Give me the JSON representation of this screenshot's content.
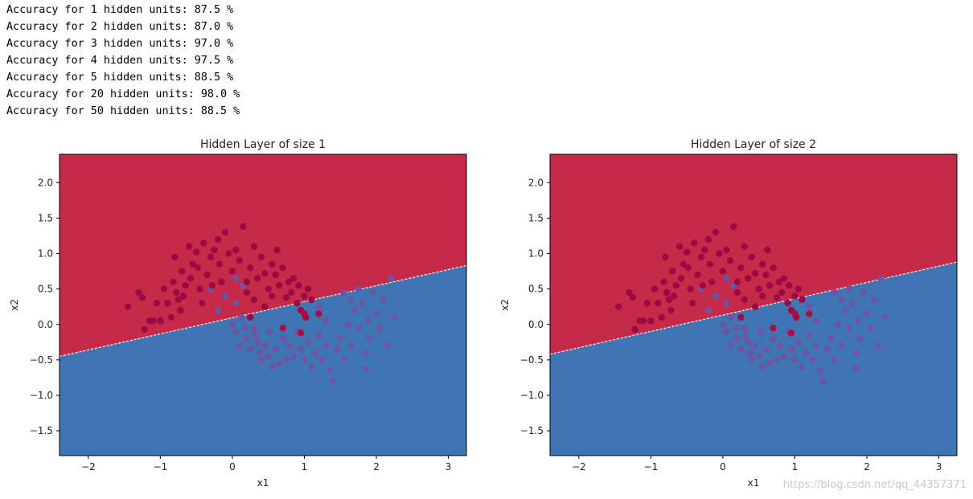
{
  "output_log": [
    "Accuracy for 1 hidden units: 87.5 %",
    "Accuracy for 2 hidden units: 87.0 %",
    "Accuracy for 3 hidden units: 97.0 %",
    "Accuracy for 4 hidden units: 97.5 %",
    "Accuracy for 5 hidden units: 88.5 %",
    "Accuracy for 20 hidden units: 98.0 %",
    "Accuracy for 50 hidden units: 88.5 %"
  ],
  "watermark": "https://blog.csdn.net/qq_44357371",
  "colors": {
    "region_class1": "#c62a49",
    "region_class0": "#3e76b3",
    "point_class1": "#9b0a45",
    "point_class0": "#6f54a3",
    "point_highlight": "#b5063f",
    "boundary": "#f2f2f2"
  },
  "chart_data": [
    {
      "type": "scatter",
      "title": "Hidden Layer of size 1",
      "xlabel": "x1",
      "ylabel": "x2",
      "xlim": [
        -2.4,
        3.25
      ],
      "ylim": [
        -1.85,
        2.4
      ],
      "xticks": [
        -2,
        -1,
        0,
        1,
        2,
        3
      ],
      "yticks": [
        -1.5,
        -1.0,
        -0.5,
        0.0,
        0.5,
        1.0,
        1.5,
        2.0
      ],
      "xtick_labels": [
        "−2",
        "−1",
        "0",
        "1",
        "2",
        "3"
      ],
      "ytick_labels": [
        "−1.5",
        "−1.0",
        "−0.5",
        "0.0",
        "0.5",
        "1.0",
        "1.5",
        "2.0"
      ],
      "grid": false,
      "decision_boundary": {
        "x": [
          -2.4,
          3.25
        ],
        "y": [
          -0.45,
          0.83
        ]
      }
    },
    {
      "type": "scatter",
      "title": "Hidden Layer of size 2",
      "xlabel": "x1",
      "ylabel": "x2",
      "xlim": [
        -2.4,
        3.25
      ],
      "ylim": [
        -1.85,
        2.4
      ],
      "xticks": [
        -2,
        -1,
        0,
        1,
        2,
        3
      ],
      "yticks": [
        -1.5,
        -1.0,
        -0.5,
        0.0,
        0.5,
        1.0,
        1.5,
        2.0
      ],
      "xtick_labels": [
        "−2",
        "−1",
        "0",
        "1",
        "2",
        "3"
      ],
      "ytick_labels": [
        "−1.5",
        "−1.0",
        "−0.5",
        "0.0",
        "0.5",
        "1.0",
        "1.5",
        "2.0"
      ],
      "grid": false,
      "decision_boundary": {
        "x": [
          -2.4,
          3.25
        ],
        "y": [
          -0.42,
          0.88
        ]
      }
    }
  ],
  "scatter_points": {
    "class1": [
      [
        -1.45,
        0.25
      ],
      [
        -1.3,
        0.45
      ],
      [
        -1.25,
        0.38
      ],
      [
        -1.22,
        -0.07
      ],
      [
        -1.15,
        0.05
      ],
      [
        -1.1,
        0.05
      ],
      [
        -1.05,
        0.3
      ],
      [
        -1.0,
        0.05
      ],
      [
        -0.95,
        0.5
      ],
      [
        -0.9,
        0.3
      ],
      [
        -0.85,
        0.1
      ],
      [
        -0.82,
        0.6
      ],
      [
        -0.8,
        0.95
      ],
      [
        -0.78,
        0.45
      ],
      [
        -0.75,
        0.35
      ],
      [
        -0.72,
        0.2
      ],
      [
        -0.7,
        0.75
      ],
      [
        -0.68,
        0.4
      ],
      [
        -0.65,
        0.55
      ],
      [
        -0.6,
        1.1
      ],
      [
        -0.58,
        0.65
      ],
      [
        -0.55,
        0.85
      ],
      [
        -0.5,
        1.02
      ],
      [
        -0.48,
        0.8
      ],
      [
        -0.45,
        0.5
      ],
      [
        -0.42,
        0.3
      ],
      [
        -0.4,
        1.15
      ],
      [
        -0.35,
        0.7
      ],
      [
        -0.3,
        0.95
      ],
      [
        -0.28,
        0.55
      ],
      [
        -0.25,
        1.05
      ],
      [
        -0.2,
        1.2
      ],
      [
        -0.18,
        0.85
      ],
      [
        -0.15,
        0.6
      ],
      [
        -0.1,
        1.3
      ],
      [
        -0.05,
        1.0
      ],
      [
        0.0,
        0.75
      ],
      [
        0.05,
        1.05
      ],
      [
        0.1,
        0.9
      ],
      [
        0.15,
        1.38
      ],
      [
        0.2,
        0.6
      ],
      [
        0.25,
        0.8
      ],
      [
        0.3,
        1.1
      ],
      [
        0.35,
        0.65
      ],
      [
        0.4,
        0.95
      ],
      [
        0.45,
        0.72
      ],
      [
        0.5,
        0.5
      ],
      [
        0.55,
        0.85
      ],
      [
        0.6,
        0.7
      ],
      [
        0.62,
        1.05
      ],
      [
        0.65,
        0.55
      ],
      [
        0.7,
        0.8
      ],
      [
        0.75,
        0.38
      ],
      [
        0.78,
        0.6
      ],
      [
        0.82,
        0.45
      ],
      [
        0.85,
        0.65
      ],
      [
        0.9,
        0.3
      ],
      [
        0.92,
        0.55
      ],
      [
        0.95,
        0.2
      ],
      [
        1.0,
        0.4
      ],
      [
        1.02,
        0.1
      ],
      [
        1.05,
        0.5
      ],
      [
        1.1,
        0.35
      ],
      [
        0.3,
        0.35
      ],
      [
        0.25,
        0.1
      ],
      [
        0.45,
        0.25
      ],
      [
        0.2,
        0.45
      ],
      [
        0.55,
        0.4
      ]
    ],
    "class0": [
      [
        -0.3,
        0.5
      ],
      [
        -0.2,
        0.2
      ],
      [
        -0.1,
        0.4
      ],
      [
        0.0,
        0.0
      ],
      [
        0.05,
        0.3
      ],
      [
        0.05,
        -0.1
      ],
      [
        0.1,
        -0.3
      ],
      [
        0.12,
        0.1
      ],
      [
        0.15,
        0.55
      ],
      [
        0.18,
        -0.05
      ],
      [
        0.2,
        -0.2
      ],
      [
        0.25,
        -0.35
      ],
      [
        0.3,
        -0.05
      ],
      [
        0.32,
        -0.15
      ],
      [
        0.35,
        -0.25
      ],
      [
        0.38,
        -0.4
      ],
      [
        0.4,
        -0.5
      ],
      [
        0.45,
        -0.3
      ],
      [
        0.5,
        -0.45
      ],
      [
        0.52,
        -0.1
      ],
      [
        0.55,
        -0.6
      ],
      [
        0.6,
        -0.35
      ],
      [
        0.65,
        -0.55
      ],
      [
        0.7,
        -0.2
      ],
      [
        0.75,
        -0.5
      ],
      [
        0.8,
        -0.3
      ],
      [
        0.85,
        -0.45
      ],
      [
        0.9,
        -0.1
      ],
      [
        0.95,
        -0.35
      ],
      [
        1.0,
        -0.5
      ],
      [
        1.05,
        -0.25
      ],
      [
        1.1,
        -0.6
      ],
      [
        1.15,
        -0.4
      ],
      [
        1.2,
        -0.15
      ],
      [
        1.25,
        -0.5
      ],
      [
        1.3,
        -0.3
      ],
      [
        1.35,
        -0.65
      ],
      [
        1.4,
        -0.8
      ],
      [
        1.45,
        -0.35
      ],
      [
        1.5,
        -0.2
      ],
      [
        1.55,
        -0.5
      ],
      [
        1.6,
        0.0
      ],
      [
        1.65,
        -0.3
      ],
      [
        1.7,
        0.2
      ],
      [
        1.75,
        -0.05
      ],
      [
        1.8,
        0.3
      ],
      [
        1.85,
        -0.4
      ],
      [
        1.88,
        0.05
      ],
      [
        1.9,
        -0.2
      ],
      [
        1.95,
        0.45
      ],
      [
        2.0,
        0.15
      ],
      [
        2.05,
        -0.05
      ],
      [
        2.1,
        0.35
      ],
      [
        2.15,
        -0.3
      ],
      [
        2.2,
        0.65
      ],
      [
        2.25,
        0.1
      ],
      [
        1.55,
        0.45
      ],
      [
        1.65,
        0.35
      ],
      [
        1.75,
        0.5
      ],
      [
        1.85,
        -0.62
      ],
      [
        1.3,
        0.05
      ],
      [
        1.2,
        0.25
      ],
      [
        0.05,
        0.65
      ]
    ],
    "highlight": [
      [
        0.7,
        -0.05
      ],
      [
        0.95,
        -0.12
      ],
      [
        1.0,
        0.15
      ],
      [
        1.2,
        0.15
      ]
    ]
  }
}
